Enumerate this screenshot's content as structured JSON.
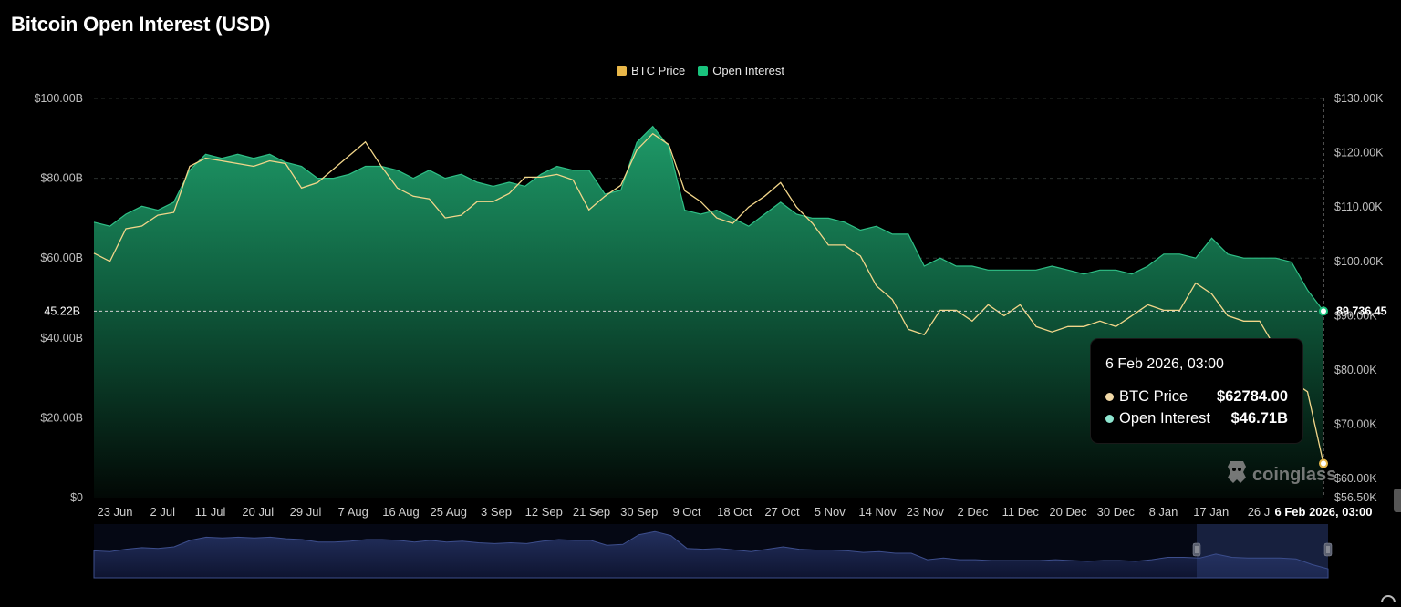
{
  "title": "Bitcoin Open Interest (USD)",
  "legend": [
    {
      "label": "BTC Price",
      "color": "#E8B749"
    },
    {
      "label": "Open Interest",
      "color": "#19C37D"
    }
  ],
  "tooltip": {
    "time": "6 Feb 2026, 03:00",
    "rows": [
      {
        "label": "BTC Price",
        "value": "$62784.00",
        "color": "#F1D8A6"
      },
      {
        "label": "Open Interest",
        "value": "$46.71B",
        "color": "#8FE6D0"
      }
    ]
  },
  "watermark": {
    "text": "coinglass",
    "icon": "coinglass-logo-icon"
  },
  "crosshair": {
    "left_label": "45.22B",
    "right_label": "89,736.45"
  },
  "chart_data": {
    "type": "area",
    "x_ticks": [
      "23 Jun",
      "2 Jul",
      "11 Jul",
      "20 Jul",
      "29 Jul",
      "7 Aug",
      "16 Aug",
      "25 Aug",
      "3 Sep",
      "12 Sep",
      "21 Sep",
      "30 Sep",
      "9 Oct",
      "18 Oct",
      "27 Oct",
      "5 Nov",
      "14 Nov",
      "23 Nov",
      "2 Dec",
      "11 Dec",
      "20 Dec",
      "30 Dec",
      "8 Jan",
      "17 Jan",
      "26 J"
    ],
    "x_highlight": "6 Feb 2026, 03:00",
    "y_left": {
      "ticks": [
        "$0",
        "$20.00B",
        "$40.00B",
        "$60.00B",
        "$80.00B",
        "$100.00B"
      ],
      "range": [
        0,
        100
      ]
    },
    "y_right": {
      "ticks": [
        "$56.50K",
        "$60.00K",
        "$70.00K",
        "$80.00K",
        "$90.00K",
        "$100.00K",
        "$110.00K",
        "$120.00K",
        "$130.00K"
      ],
      "range": [
        56.5,
        130
      ]
    },
    "grid": true,
    "legend_position": "top-center",
    "series": [
      {
        "name": "Open Interest",
        "unit": "USD billions",
        "axis": "left",
        "color": "#19C37D",
        "x": [
          "23 Jun",
          "26 Jun",
          "29 Jun",
          "2 Jul",
          "5 Jul",
          "8 Jul",
          "11 Jul",
          "14 Jul",
          "17 Jul",
          "20 Jul",
          "23 Jul",
          "26 Jul",
          "29 Jul",
          "1 Aug",
          "4 Aug",
          "7 Aug",
          "10 Aug",
          "13 Aug",
          "16 Aug",
          "19 Aug",
          "22 Aug",
          "25 Aug",
          "28 Aug",
          "31 Aug",
          "3 Sep",
          "6 Sep",
          "9 Sep",
          "12 Sep",
          "15 Sep",
          "18 Sep",
          "21 Sep",
          "24 Sep",
          "27 Sep",
          "30 Sep",
          "3 Oct",
          "6 Oct",
          "9 Oct",
          "10 Oct",
          "12 Oct",
          "15 Oct",
          "18 Oct",
          "21 Oct",
          "24 Oct",
          "27 Oct",
          "30 Oct",
          "2 Nov",
          "5 Nov",
          "8 Nov",
          "11 Nov",
          "14 Nov",
          "17 Nov",
          "20 Nov",
          "23 Nov",
          "26 Nov",
          "29 Nov",
          "2 Dec",
          "5 Dec",
          "8 Dec",
          "11 Dec",
          "14 Dec",
          "17 Dec",
          "20 Dec",
          "23 Dec",
          "26 Dec",
          "30 Dec",
          "2 Jan",
          "5 Jan",
          "8 Jan",
          "11 Jan",
          "14 Jan",
          "17 Jan",
          "20 Jan",
          "23 Jan",
          "26 Jan",
          "29 Jan",
          "1 Feb",
          "4 Feb",
          "6 Feb"
        ],
        "values": [
          69,
          68,
          71,
          73,
          72,
          74,
          82,
          86,
          85,
          86,
          85,
          86,
          84,
          83,
          80,
          80,
          81,
          83,
          83,
          82,
          80,
          82,
          80,
          81,
          79,
          78,
          79,
          78,
          81,
          83,
          82,
          82,
          76,
          77,
          89,
          93,
          88,
          72,
          71,
          72,
          70,
          68,
          71,
          74,
          71,
          70,
          70,
          69,
          67,
          68,
          66,
          66,
          58,
          60,
          58,
          58,
          57,
          57,
          57,
          57,
          58,
          57,
          56,
          57,
          57,
          56,
          58,
          61,
          61,
          60,
          65,
          61,
          60,
          60,
          60,
          59,
          52,
          46.71
        ]
      },
      {
        "name": "BTC Price",
        "unit": "USD thousands",
        "axis": "right",
        "color": "#E8B749",
        "x": [
          "23 Jun",
          "26 Jun",
          "29 Jun",
          "2 Jul",
          "5 Jul",
          "8 Jul",
          "11 Jul",
          "14 Jul",
          "17 Jul",
          "20 Jul",
          "23 Jul",
          "26 Jul",
          "29 Jul",
          "1 Aug",
          "4 Aug",
          "7 Aug",
          "10 Aug",
          "13 Aug",
          "16 Aug",
          "19 Aug",
          "22 Aug",
          "25 Aug",
          "28 Aug",
          "31 Aug",
          "3 Sep",
          "6 Sep",
          "9 Sep",
          "12 Sep",
          "15 Sep",
          "18 Sep",
          "21 Sep",
          "24 Sep",
          "27 Sep",
          "30 Sep",
          "3 Oct",
          "6 Oct",
          "9 Oct",
          "10 Oct",
          "12 Oct",
          "15 Oct",
          "18 Oct",
          "21 Oct",
          "24 Oct",
          "27 Oct",
          "30 Oct",
          "2 Nov",
          "5 Nov",
          "8 Nov",
          "11 Nov",
          "14 Nov",
          "17 Nov",
          "20 Nov",
          "23 Nov",
          "26 Nov",
          "29 Nov",
          "2 Dec",
          "5 Dec",
          "8 Dec",
          "11 Dec",
          "14 Dec",
          "17 Dec",
          "20 Dec",
          "23 Dec",
          "26 Dec",
          "30 Dec",
          "2 Jan",
          "5 Jan",
          "8 Jan",
          "11 Jan",
          "14 Jan",
          "17 Jan",
          "20 Jan",
          "23 Jan",
          "26 Jan",
          "29 Jan",
          "1 Feb",
          "4 Feb",
          "6 Feb"
        ],
        "values": [
          101.5,
          100,
          106,
          106.5,
          108.5,
          109,
          117.5,
          119,
          118.5,
          118,
          117.5,
          118.5,
          118,
          113.5,
          114.5,
          117,
          119.5,
          122,
          117.5,
          113.5,
          112,
          111.5,
          108,
          108.5,
          111,
          111,
          112.5,
          115.5,
          115.5,
          116,
          115,
          109.5,
          112,
          114,
          120.5,
          123.5,
          121.5,
          113,
          111,
          108,
          107,
          110,
          112,
          114.5,
          110,
          107,
          103,
          103,
          101,
          95.5,
          93,
          87.5,
          86.5,
          91,
          91,
          89,
          92,
          90,
          92,
          88,
          87,
          88,
          88,
          89,
          88,
          90,
          92,
          91,
          91,
          96,
          94,
          90,
          89,
          89,
          84,
          78,
          76,
          62.784
        ]
      }
    ]
  }
}
